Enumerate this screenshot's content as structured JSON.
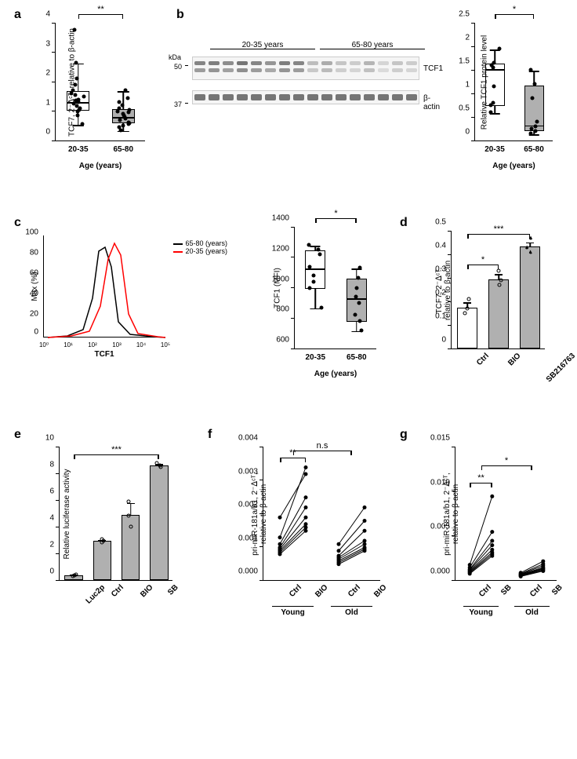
{
  "panels": {
    "a": {
      "label": "a",
      "ylabel": "TCF7, 2⁻ᐃᶜᵀ, relative to β-actin",
      "xlabel": "Age (years)",
      "ylim": [
        0,
        4
      ],
      "yticks": [
        0,
        1,
        2,
        3,
        4
      ],
      "groups": [
        {
          "label": "20-35",
          "fill": "#ffffff",
          "q1": 1.05,
          "median": 1.35,
          "q3": 1.7,
          "whisker_low": 0.55,
          "whisker_high": 2.65,
          "points": [
            0.55,
            0.85,
            1.0,
            1.05,
            1.1,
            1.18,
            1.25,
            1.3,
            1.35,
            1.4,
            1.5,
            1.55,
            1.6,
            1.7,
            1.9,
            2.1,
            2.65,
            3.75
          ]
        },
        {
          "label": "65-80",
          "fill": "#b0b0b0",
          "q1": 0.62,
          "median": 0.85,
          "q3": 1.1,
          "whisker_low": 0.35,
          "whisker_high": 1.7,
          "points": [
            0.35,
            0.45,
            0.5,
            0.55,
            0.6,
            0.62,
            0.7,
            0.75,
            0.8,
            0.85,
            0.9,
            0.95,
            1.0,
            1.05,
            1.1,
            1.2,
            1.3,
            1.45,
            1.7
          ]
        }
      ],
      "sig": {
        "label": "**",
        "between": [
          0,
          1
        ]
      }
    },
    "b": {
      "label": "b",
      "groups_header": [
        "20-35 years",
        "65-80 years"
      ],
      "kDa_marks": [
        {
          "label": "50",
          "row": 0
        },
        {
          "label": "37",
          "row": 1
        }
      ],
      "row_labels": [
        "TCF1",
        "β-actin"
      ],
      "lanes_young_intensity": [
        0.7,
        0.75,
        0.65,
        0.8,
        0.7,
        0.6,
        0.75,
        0.7
      ],
      "lanes_old_intensity": [
        0.35,
        0.45,
        0.3,
        0.25,
        0.4,
        0.2,
        0.3,
        0.25
      ],
      "actin_intensity": 0.8,
      "right_chart": {
        "ylabel": "Relative TCF1 protein level",
        "xlabel": "Age (years)",
        "ylim": [
          0.0,
          2.5
        ],
        "yticks": [
          0.0,
          0.5,
          1.0,
          1.5,
          2.0,
          2.5
        ],
        "groups": [
          {
            "label": "20-35",
            "fill": "#ffffff",
            "q1": 0.75,
            "median": 1.55,
            "q3": 1.65,
            "whisker_low": 0.6,
            "whisker_high": 1.95,
            "points": [
              0.6,
              0.75,
              0.8,
              1.15,
              1.55,
              1.6,
              1.65,
              1.95
            ]
          },
          {
            "label": "65-80",
            "fill": "#b0b0b0",
            "q1": 0.22,
            "median": 0.35,
            "q3": 1.18,
            "whisker_low": 0.15,
            "whisker_high": 1.5,
            "points": [
              0.15,
              0.2,
              0.25,
              0.3,
              0.4,
              0.9,
              1.2,
              1.5
            ]
          }
        ],
        "sig": {
          "label": "*",
          "between": [
            0,
            1
          ]
        }
      }
    },
    "c": {
      "label": "c",
      "hist": {
        "xlabel": "TCF1",
        "ylabel": "Max (%)",
        "legend": [
          {
            "label": "65-80 (years)",
            "color": "#000000"
          },
          {
            "label": "20-35 (years)",
            "color": "#ff0000"
          }
        ],
        "xticks": [
          "10⁰",
          "10¹",
          "10²",
          "10³",
          "10⁴",
          "10⁵"
        ]
      },
      "right_chart": {
        "ylabel": "TCF1 (MFI)",
        "xlabel": "Age (years)",
        "ylim": [
          600,
          1400
        ],
        "yticks": [
          600,
          800,
          1000,
          1200,
          1400
        ],
        "groups": [
          {
            "label": "20-35",
            "fill": "#ffffff",
            "q1": 1000,
            "median": 1135,
            "q3": 1250,
            "whisker_low": 870,
            "whisker_high": 1280,
            "points": [
              870,
              1000,
              1040,
              1080,
              1135,
              1220,
              1250,
              1280
            ]
          },
          {
            "label": "65-80",
            "fill": "#b0b0b0",
            "q1": 780,
            "median": 940,
            "q3": 1065,
            "whisker_low": 720,
            "whisker_high": 1130,
            "points": [
              720,
              780,
              820,
              900,
              940,
              1000,
              1065,
              1130
            ]
          }
        ],
        "sig": {
          "label": "*",
          "between": [
            0,
            1
          ]
        }
      }
    },
    "d": {
      "label": "d",
      "ylabel": "TCF7, 2⁻ᐃᶜᵀ,\nrelative to β-actin",
      "ylim": [
        0.0,
        0.5
      ],
      "yticks": [
        0.0,
        0.1,
        0.2,
        0.3,
        0.4,
        0.5
      ],
      "bars": [
        {
          "label": "Ctrl",
          "fill": "#ffffff",
          "mean": 0.175,
          "err": 0.025,
          "points": [
            0.15,
            0.17,
            0.21
          ]
        },
        {
          "label": "BIO",
          "fill": "#b0b0b0",
          "mean": 0.295,
          "err": 0.025,
          "points": [
            0.27,
            0.29,
            0.33
          ]
        },
        {
          "label": "SB216763",
          "fill": "#b0b0b0",
          "mean": 0.435,
          "err": 0.02,
          "points": [
            0.41,
            0.43,
            0.47
          ]
        }
      ],
      "sigs": [
        {
          "label": "*",
          "from": 0,
          "to": 1,
          "y": 0.36
        },
        {
          "label": "***",
          "from": 0,
          "to": 2,
          "y": 0.49
        }
      ]
    },
    "e": {
      "label": "e",
      "ylabel": "Relative luciferase activity",
      "ylim": [
        0,
        10
      ],
      "yticks": [
        0,
        2,
        4,
        6,
        8,
        10
      ],
      "bars": [
        {
          "label": "Luc2p",
          "fill": "#b0b0b0",
          "mean": 0.35,
          "err": 0.1,
          "points": [
            0.3,
            0.35,
            0.4
          ]
        },
        {
          "label": "Ctrl",
          "fill": "#b0b0b0",
          "mean": 2.95,
          "err": 0.1,
          "points": [
            2.85,
            2.95,
            3.05
          ]
        },
        {
          "label": "BIO",
          "fill": "#b0b0b0",
          "mean": 4.9,
          "err": 0.95,
          "points": [
            4.0,
            4.8,
            5.9
          ]
        },
        {
          "label": "SB",
          "fill": "#b0b0b0",
          "mean": 8.6,
          "err": 0.15,
          "points": [
            8.45,
            8.6,
            8.75
          ]
        }
      ],
      "sigs": [
        {
          "label": "***",
          "from": 0,
          "to": 3,
          "y": 9.5
        }
      ]
    },
    "f": {
      "label": "f",
      "ylabel": "pri-miR-181a/b1, 2⁻ᐃᶜᵀ,\nrelative to β-actin",
      "ylim": [
        0.0,
        0.004
      ],
      "yticks": [
        0.0,
        0.001,
        0.002,
        0.003,
        0.004
      ],
      "groups": [
        {
          "label": "Young",
          "cond": [
            "Ctrl",
            "BIO"
          ],
          "pairs": [
            [
              0.0019,
              0.0032
            ],
            [
              0.0013,
              0.0034
            ],
            [
              0.0011,
              0.0025
            ],
            [
              0.001,
              0.0022
            ],
            [
              0.00095,
              0.0019
            ],
            [
              0.0009,
              0.0017
            ],
            [
              0.00085,
              0.0016
            ],
            [
              0.0008,
              0.0015
            ]
          ]
        },
        {
          "label": "Old",
          "cond": [
            "Ctrl",
            "BIO"
          ],
          "pairs": [
            [
              0.0011,
              0.0022
            ],
            [
              0.0009,
              0.0018
            ],
            [
              0.00075,
              0.0015
            ],
            [
              0.0007,
              0.0012
            ],
            [
              0.00065,
              0.0011
            ],
            [
              0.0006,
              0.001
            ],
            [
              0.00055,
              0.00095
            ],
            [
              0.0005,
              0.0009
            ]
          ]
        }
      ],
      "sigs": [
        {
          "label": "**",
          "group": 0,
          "y": 0.0037
        },
        {
          "label": "n.s",
          "between_groups": [
            0,
            1
          ],
          "y": 0.0039
        }
      ]
    },
    "g": {
      "label": "g",
      "ylabel": "pri-miR-181a/b1, 2⁻ᐃᶜᵀ,\nrelative to β-actin",
      "ylim": [
        0.0,
        0.015
      ],
      "yticks": [
        0.0,
        0.005,
        0.01,
        0.015
      ],
      "groups": [
        {
          "label": "Young",
          "cond": [
            "Ctrl",
            "SB"
          ],
          "pairs": [
            [
              0.0018,
              0.0095
            ],
            [
              0.0015,
              0.0055
            ],
            [
              0.0013,
              0.0045
            ],
            [
              0.0012,
              0.004
            ],
            [
              0.0011,
              0.0035
            ],
            [
              0.001,
              0.0032
            ],
            [
              0.0009,
              0.003
            ],
            [
              0.0008,
              0.0028
            ]
          ]
        },
        {
          "label": "Old",
          "cond": [
            "Ctrl",
            "SB"
          ],
          "pairs": [
            [
              0.0009,
              0.0022
            ],
            [
              0.0008,
              0.0019
            ],
            [
              0.00075,
              0.0017
            ],
            [
              0.0007,
              0.0015
            ],
            [
              0.00065,
              0.0014
            ],
            [
              0.0006,
              0.0013
            ],
            [
              0.00055,
              0.0012
            ],
            [
              0.0005,
              0.0011
            ]
          ]
        }
      ],
      "sigs": [
        {
          "label": "**",
          "group": 0,
          "y": 0.011
        },
        {
          "label": "*",
          "between_groups": [
            0,
            1
          ],
          "y": 0.013
        }
      ]
    }
  },
  "colors": {
    "young_fill": "#ffffff",
    "old_fill": "#b0b0b0",
    "axis": "#000000",
    "point": "#000000"
  }
}
